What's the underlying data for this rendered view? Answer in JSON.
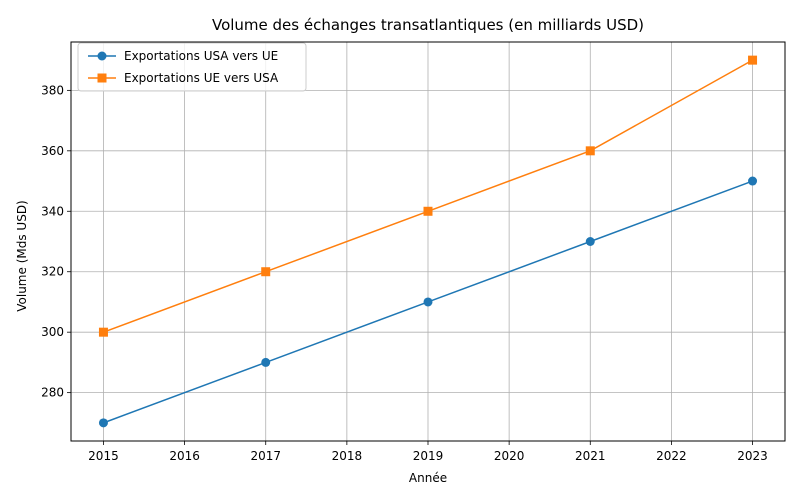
{
  "chart_data": {
    "type": "line",
    "title": "Volume des échanges transatlantiques (en milliards USD)",
    "xlabel": "Année",
    "ylabel": "Volume (Mds USD)",
    "x": [
      2015,
      2017,
      2019,
      2021,
      2023
    ],
    "xlim": [
      2014.6,
      2023.4
    ],
    "ylim": [
      264,
      396
    ],
    "xticks": [
      2015,
      2016,
      2017,
      2018,
      2019,
      2020,
      2021,
      2022,
      2023
    ],
    "yticks": [
      280,
      300,
      320,
      340,
      360,
      380
    ],
    "grid": true,
    "legend_position": "upper-left",
    "series": [
      {
        "name": "Exportations USA vers UE",
        "values": [
          270,
          290,
          310,
          330,
          350
        ],
        "color": "#1f77b4",
        "marker": "circle"
      },
      {
        "name": "Exportations UE vers USA",
        "values": [
          300,
          320,
          340,
          360,
          390
        ],
        "color": "#ff7f0e",
        "marker": "square"
      }
    ]
  }
}
